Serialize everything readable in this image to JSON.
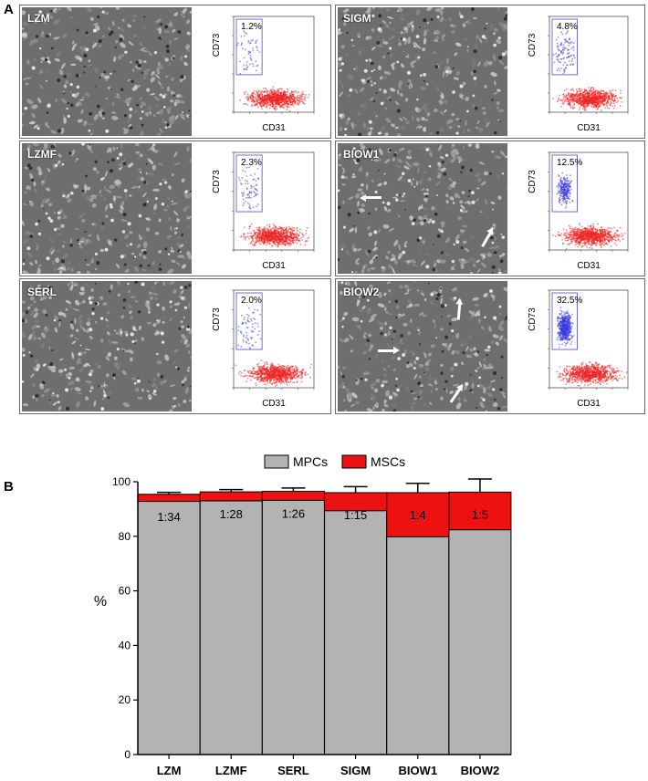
{
  "panel_a": {
    "letter": "A",
    "x_axis_label": "CD31",
    "y_axis_label": "CD73",
    "samples": [
      {
        "name": "LZM",
        "percent": "1.2%",
        "msc_fraction": 0.012
      },
      {
        "name": "SIGM",
        "percent": "4.8%",
        "msc_fraction": 0.048
      },
      {
        "name": "LZMF",
        "percent": "2.3%",
        "msc_fraction": 0.023
      },
      {
        "name": "BIOW1",
        "percent": "12.5%",
        "msc_fraction": 0.125
      },
      {
        "name": "SERL",
        "percent": "2.0%",
        "msc_fraction": 0.02
      },
      {
        "name": "BIOW2",
        "percent": "32.5%",
        "msc_fraction": 0.325
      }
    ]
  },
  "panel_b": {
    "letter": "B",
    "legend": [
      {
        "name": "MPCs",
        "color": "#b3b3b3"
      },
      {
        "name": "MSCs",
        "color": "#ee1111"
      }
    ]
  },
  "chart_data": {
    "type": "bar",
    "stacked": true,
    "categories": [
      "LZM",
      "LZMF",
      "SERL",
      "SIGM",
      "BIOW1",
      "BIOW2"
    ],
    "series": [
      {
        "name": "MPCs",
        "values": [
          92.8,
          93.0,
          93.2,
          89.4,
          79.8,
          82.4
        ]
      },
      {
        "name": "MSCs",
        "values": [
          2.6,
          3.3,
          3.3,
          6.6,
          16.2,
          13.8
        ]
      }
    ],
    "error_bars_upper": [
      0.7,
      0.8,
      1.2,
      2.2,
      3.4,
      4.8
    ],
    "ratio_labels": [
      "1:34",
      "1:28",
      "1:26",
      "1:15",
      "1:4",
      "1:5"
    ],
    "xlabel": "",
    "ylabel": "%",
    "ylim": [
      0,
      100
    ],
    "yticks": [
      0,
      20,
      40,
      60,
      80,
      100
    ],
    "legend_position": "top-center",
    "grid": false
  }
}
